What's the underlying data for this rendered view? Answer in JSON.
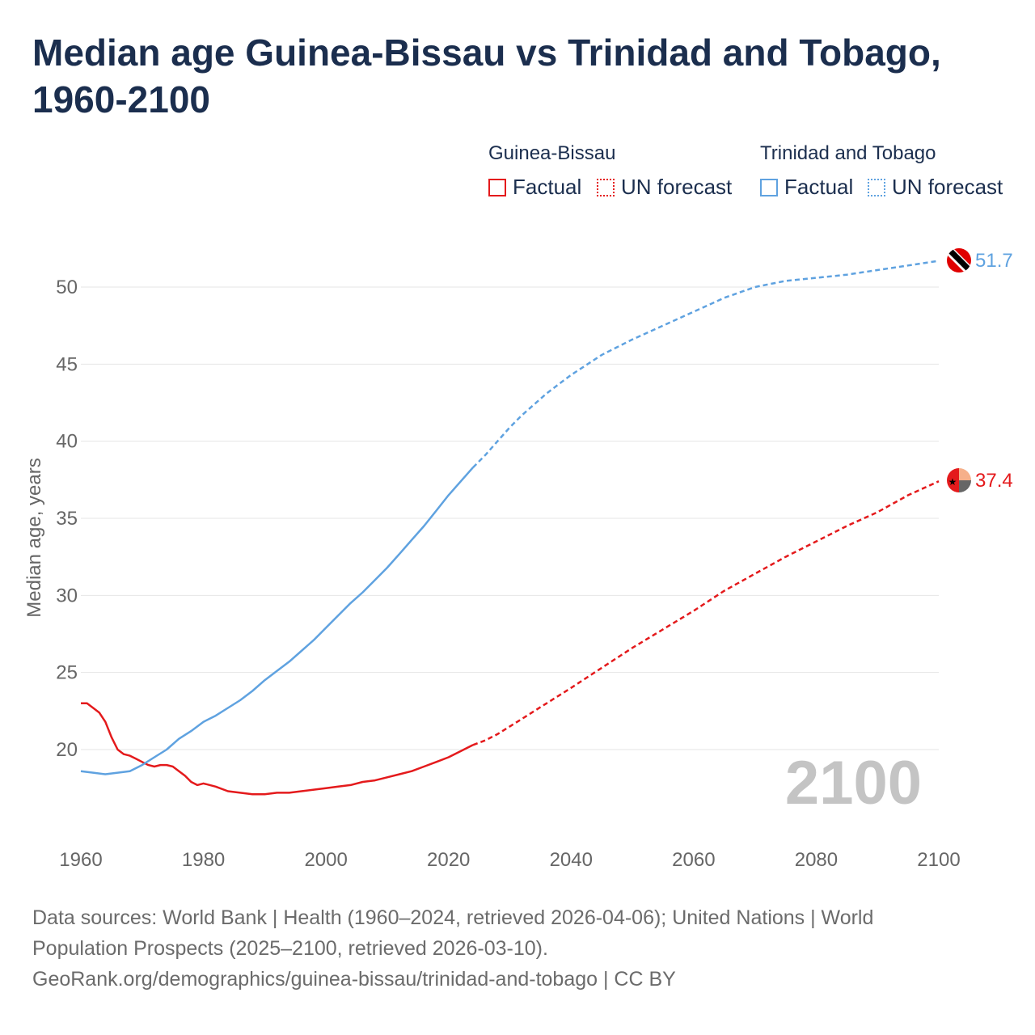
{
  "title": "Median age Guinea-Bissau vs Trinidad and Tobago, 1960-2100",
  "legend": {
    "groups": [
      {
        "name": "Guinea-Bissau",
        "factual": "Factual",
        "forecast": "UN forecast",
        "color": "#e41a1c"
      },
      {
        "name": "Trinidad and Tobago",
        "factual": "Factual",
        "forecast": "UN forecast",
        "color": "#5fa2e0"
      }
    ]
  },
  "year_watermark": "2100",
  "end_labels": {
    "trinidad": "51.7",
    "guinea": "37.4"
  },
  "footer": {
    "line1": "Data sources: World Bank | Health (1960–2024, retrieved 2026-04-06); United Nations | World",
    "line2": "Population Prospects (2025–2100, retrieved 2026-03-10).",
    "line3": "GeoRank.org/demographics/guinea-bissau/trinidad-and-tobago | CC BY"
  },
  "chart_data": {
    "type": "line",
    "title": "Median age Guinea-Bissau vs Trinidad and Tobago, 1960-2100",
    "xlabel": "",
    "ylabel": "Median age, years",
    "xlim": [
      1960,
      2100
    ],
    "ylim": [
      15,
      52
    ],
    "xticks": [
      1960,
      1980,
      2000,
      2020,
      2040,
      2060,
      2080,
      2100
    ],
    "yticks": [
      20,
      25,
      30,
      35,
      40,
      45,
      50
    ],
    "factual_end_year": 2024,
    "series": [
      {
        "name": "Guinea-Bissau",
        "color": "#e41a1c",
        "points": [
          [
            1960,
            23.0
          ],
          [
            1961,
            23.0
          ],
          [
            1962,
            22.7
          ],
          [
            1963,
            22.4
          ],
          [
            1964,
            21.8
          ],
          [
            1965,
            20.8
          ],
          [
            1966,
            20.0
          ],
          [
            1967,
            19.7
          ],
          [
            1968,
            19.6
          ],
          [
            1969,
            19.4
          ],
          [
            1970,
            19.2
          ],
          [
            1971,
            19.0
          ],
          [
            1972,
            18.9
          ],
          [
            1973,
            19.0
          ],
          [
            1974,
            19.0
          ],
          [
            1975,
            18.9
          ],
          [
            1976,
            18.6
          ],
          [
            1977,
            18.3
          ],
          [
            1978,
            17.9
          ],
          [
            1979,
            17.7
          ],
          [
            1980,
            17.8
          ],
          [
            1982,
            17.6
          ],
          [
            1984,
            17.3
          ],
          [
            1986,
            17.2
          ],
          [
            1988,
            17.1
          ],
          [
            1990,
            17.1
          ],
          [
            1992,
            17.2
          ],
          [
            1994,
            17.2
          ],
          [
            1996,
            17.3
          ],
          [
            1998,
            17.4
          ],
          [
            2000,
            17.5
          ],
          [
            2002,
            17.6
          ],
          [
            2004,
            17.7
          ],
          [
            2006,
            17.9
          ],
          [
            2008,
            18.0
          ],
          [
            2010,
            18.2
          ],
          [
            2012,
            18.4
          ],
          [
            2014,
            18.6
          ],
          [
            2016,
            18.9
          ],
          [
            2018,
            19.2
          ],
          [
            2020,
            19.5
          ],
          [
            2022,
            19.9
          ],
          [
            2024,
            20.3
          ],
          [
            2026,
            20.6
          ],
          [
            2028,
            21.0
          ],
          [
            2030,
            21.5
          ],
          [
            2032,
            22.0
          ],
          [
            2034,
            22.5
          ],
          [
            2036,
            23.0
          ],
          [
            2038,
            23.5
          ],
          [
            2040,
            24.0
          ],
          [
            2045,
            25.3
          ],
          [
            2050,
            26.6
          ],
          [
            2055,
            27.8
          ],
          [
            2060,
            29.0
          ],
          [
            2065,
            30.3
          ],
          [
            2070,
            31.4
          ],
          [
            2075,
            32.5
          ],
          [
            2080,
            33.5
          ],
          [
            2085,
            34.5
          ],
          [
            2090,
            35.4
          ],
          [
            2095,
            36.5
          ],
          [
            2100,
            37.4
          ]
        ]
      },
      {
        "name": "Trinidad and Tobago",
        "color": "#5fa2e0",
        "points": [
          [
            1960,
            18.6
          ],
          [
            1962,
            18.5
          ],
          [
            1964,
            18.4
          ],
          [
            1966,
            18.5
          ],
          [
            1968,
            18.6
          ],
          [
            1970,
            19.0
          ],
          [
            1972,
            19.5
          ],
          [
            1974,
            20.0
          ],
          [
            1976,
            20.7
          ],
          [
            1978,
            21.2
          ],
          [
            1980,
            21.8
          ],
          [
            1982,
            22.2
          ],
          [
            1984,
            22.7
          ],
          [
            1986,
            23.2
          ],
          [
            1988,
            23.8
          ],
          [
            1990,
            24.5
          ],
          [
            1992,
            25.1
          ],
          [
            1994,
            25.7
          ],
          [
            1996,
            26.4
          ],
          [
            1998,
            27.1
          ],
          [
            2000,
            27.9
          ],
          [
            2002,
            28.7
          ],
          [
            2004,
            29.5
          ],
          [
            2006,
            30.2
          ],
          [
            2008,
            31.0
          ],
          [
            2010,
            31.8
          ],
          [
            2012,
            32.7
          ],
          [
            2014,
            33.6
          ],
          [
            2016,
            34.5
          ],
          [
            2018,
            35.5
          ],
          [
            2020,
            36.5
          ],
          [
            2022,
            37.4
          ],
          [
            2024,
            38.3
          ],
          [
            2026,
            39.1
          ],
          [
            2028,
            40.0
          ],
          [
            2030,
            40.9
          ],
          [
            2032,
            41.7
          ],
          [
            2034,
            42.4
          ],
          [
            2036,
            43.1
          ],
          [
            2038,
            43.7
          ],
          [
            2040,
            44.3
          ],
          [
            2045,
            45.6
          ],
          [
            2050,
            46.6
          ],
          [
            2055,
            47.5
          ],
          [
            2060,
            48.4
          ],
          [
            2065,
            49.3
          ],
          [
            2070,
            50.0
          ],
          [
            2075,
            50.4
          ],
          [
            2080,
            50.6
          ],
          [
            2085,
            50.8
          ],
          [
            2090,
            51.1
          ],
          [
            2095,
            51.4
          ],
          [
            2100,
            51.7
          ]
        ]
      }
    ]
  }
}
